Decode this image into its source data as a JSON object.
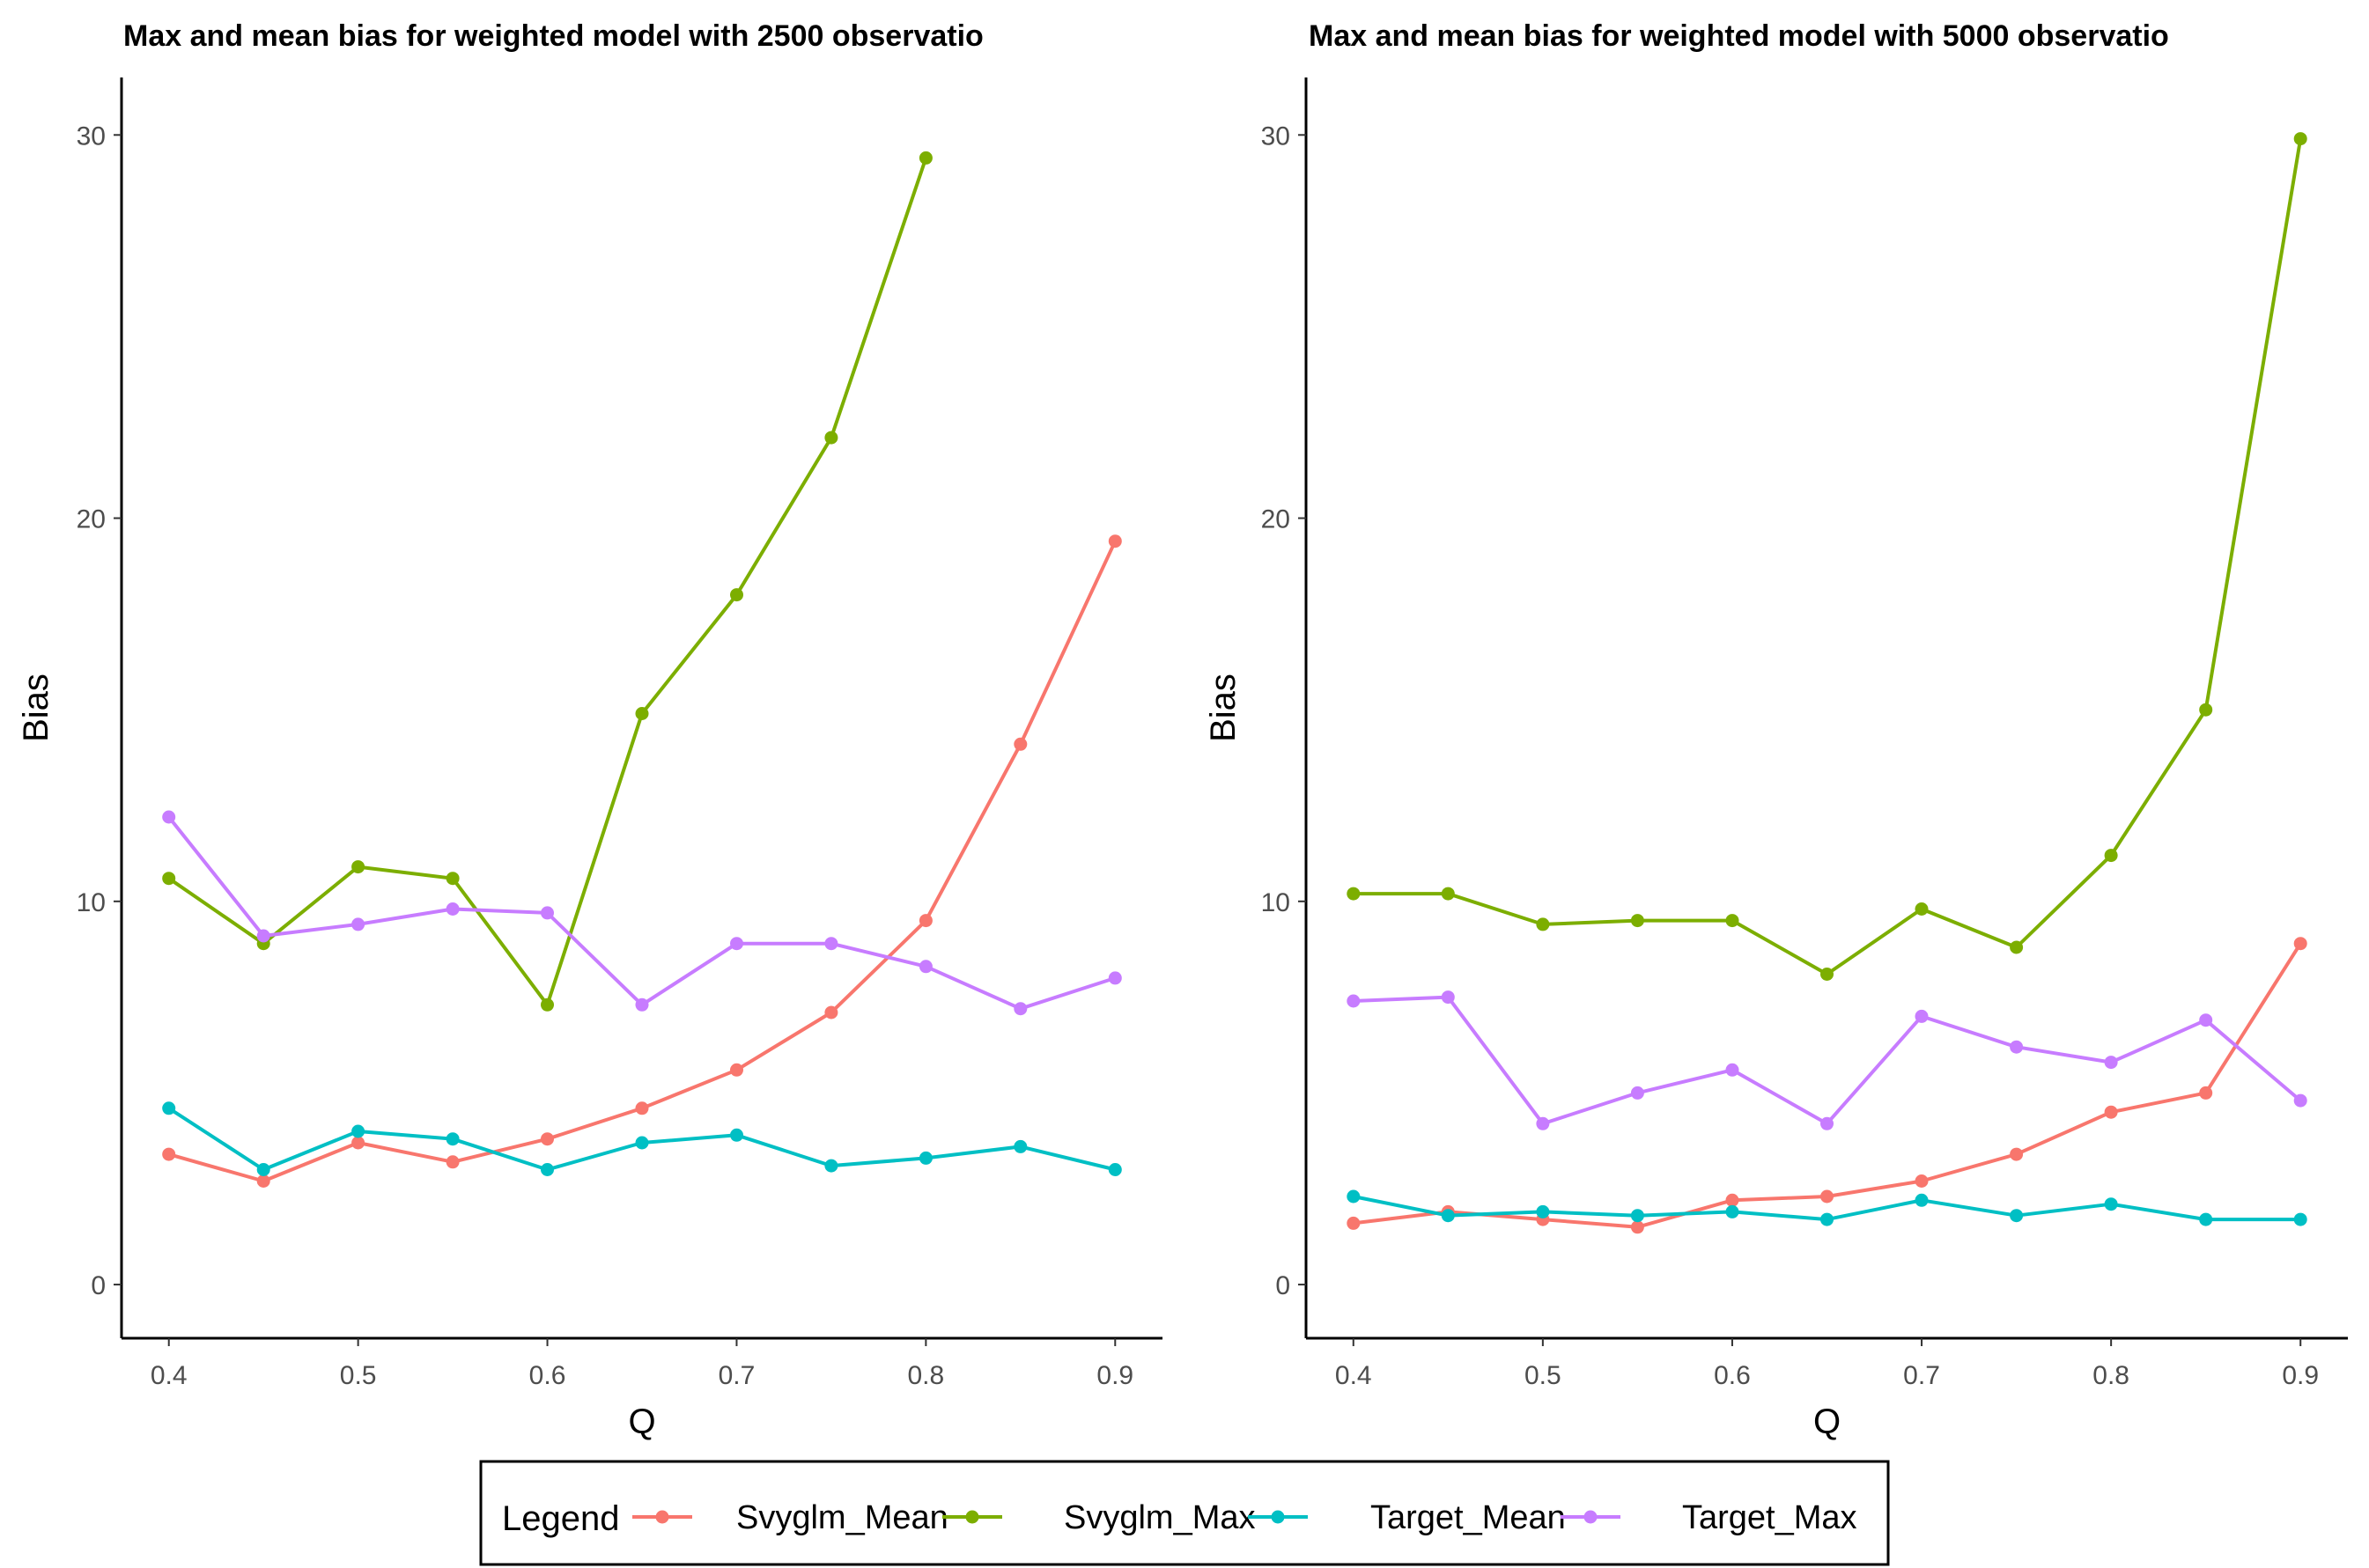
{
  "legend": {
    "title": "Legend",
    "items": [
      {
        "name": "Svyglm_Mean",
        "color": "#F8766D"
      },
      {
        "name": "Svyglm_Max",
        "color": "#7CAE00"
      },
      {
        "name": "Target_Mean",
        "color": "#00BFC4"
      },
      {
        "name": "Target_Max",
        "color": "#C77CFF"
      }
    ]
  },
  "chart_data": [
    {
      "type": "line",
      "title": "Max and mean bias for weighted model with 2500 observatio",
      "xlabel": "Q",
      "ylabel": "Bias",
      "x_ticks": [
        "0.4",
        "0.5",
        "0.6",
        "0.7",
        "0.8",
        "0.9"
      ],
      "y_ticks": [
        "0",
        "10",
        "20",
        "30"
      ],
      "xlim": [
        0.375,
        0.925
      ],
      "ylim": [
        -1.4,
        31.5
      ],
      "grid": false,
      "x": [
        0.4,
        0.45,
        0.5,
        0.55,
        0.6,
        0.65,
        0.7,
        0.75,
        0.8,
        0.85,
        0.9
      ],
      "series": [
        {
          "name": "Svyglm_Mean",
          "color": "#F8766D",
          "values": [
            3.4,
            2.7,
            3.7,
            3.2,
            3.8,
            4.6,
            5.6,
            7.1,
            9.5,
            14.1,
            19.4
          ]
        },
        {
          "name": "Svyglm_Max",
          "color": "#7CAE00",
          "values": [
            10.6,
            8.9,
            10.9,
            10.6,
            7.3,
            14.9,
            18.0,
            22.1,
            29.4,
            null,
            null
          ]
        },
        {
          "name": "Target_Mean",
          "color": "#00BFC4",
          "values": [
            4.6,
            3.0,
            4.0,
            3.8,
            3.0,
            3.7,
            3.9,
            3.1,
            3.3,
            3.6,
            3.0
          ]
        },
        {
          "name": "Target_Max",
          "color": "#C77CFF",
          "values": [
            12.2,
            9.1,
            9.4,
            9.8,
            9.7,
            7.3,
            8.9,
            8.9,
            8.3,
            7.2,
            8.0
          ]
        }
      ]
    },
    {
      "type": "line",
      "title": "Max and mean bias for weighted model with 5000 observatio",
      "xlabel": "Q",
      "ylabel": "Bias",
      "x_ticks": [
        "0.4",
        "0.5",
        "0.6",
        "0.7",
        "0.8",
        "0.9"
      ],
      "y_ticks": [
        "0",
        "10",
        "20",
        "30"
      ],
      "xlim": [
        0.375,
        0.925
      ],
      "ylim": [
        -1.4,
        31.5
      ],
      "grid": false,
      "x": [
        0.4,
        0.45,
        0.5,
        0.55,
        0.6,
        0.65,
        0.7,
        0.75,
        0.8,
        0.85,
        0.9
      ],
      "series": [
        {
          "name": "Svyglm_Mean",
          "color": "#F8766D",
          "values": [
            1.6,
            1.9,
            1.7,
            1.5,
            2.2,
            2.3,
            2.7,
            3.4,
            4.5,
            5.0,
            8.9
          ]
        },
        {
          "name": "Svyglm_Max",
          "color": "#7CAE00",
          "values": [
            10.2,
            10.2,
            9.4,
            9.5,
            9.5,
            8.1,
            9.8,
            8.8,
            11.2,
            15.0,
            29.9
          ]
        },
        {
          "name": "Target_Mean",
          "color": "#00BFC4",
          "values": [
            2.3,
            1.8,
            1.9,
            1.8,
            1.9,
            1.7,
            2.2,
            1.8,
            2.1,
            1.7,
            1.7
          ]
        },
        {
          "name": "Target_Max",
          "color": "#C77CFF",
          "values": [
            7.4,
            7.5,
            4.2,
            5.0,
            5.6,
            4.2,
            7.0,
            6.2,
            5.8,
            6.9,
            4.8
          ]
        }
      ]
    }
  ]
}
